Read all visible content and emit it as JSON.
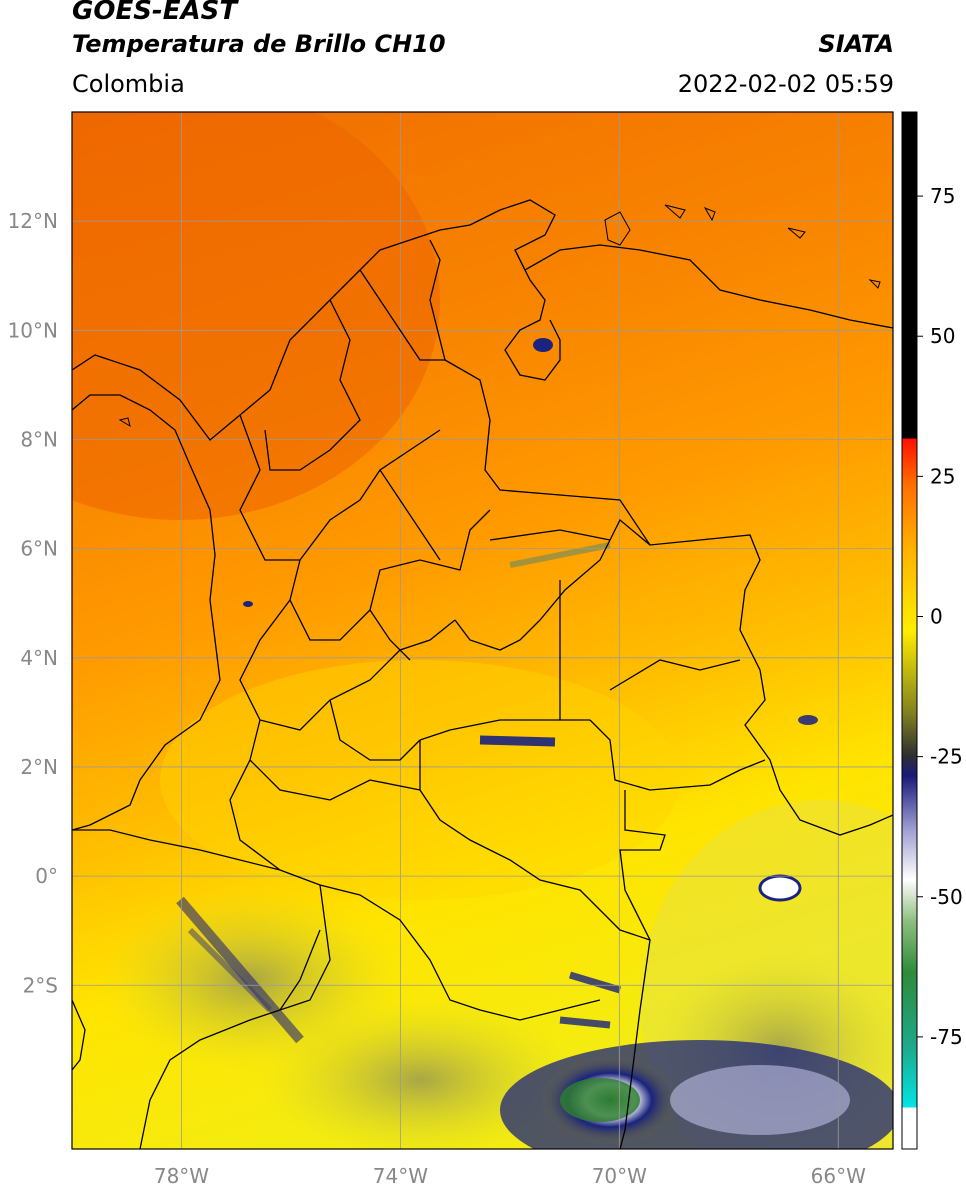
{
  "header": {
    "satellite": "GOES-EAST",
    "product": "Temperatura de Brillo CH10",
    "region": "Colombia",
    "agency": "SIATA",
    "datetime": "2022-02-02 05:59"
  },
  "map": {
    "lon_range": [
      -80,
      -65
    ],
    "lat_range": [
      -5,
      14
    ],
    "x_ticks": [
      {
        "value": -78,
        "label": "78°W"
      },
      {
        "value": -74,
        "label": "74°W"
      },
      {
        "value": -70,
        "label": "70°W"
      },
      {
        "value": -66,
        "label": "66°W"
      }
    ],
    "y_ticks": [
      {
        "value": 12,
        "label": "12°N"
      },
      {
        "value": 10,
        "label": "10°N"
      },
      {
        "value": 8,
        "label": "8°N"
      },
      {
        "value": 6,
        "label": "6°N"
      },
      {
        "value": 4,
        "label": "4°N"
      },
      {
        "value": 2,
        "label": "2°N"
      },
      {
        "value": 0,
        "label": "0°"
      },
      {
        "value": -2,
        "label": "2°S"
      }
    ],
    "gridlines": true,
    "field_colors": {
      "warm": "#f07000",
      "mid": "#ff9900",
      "cool": "#ffcc00",
      "cold": "#ffee00",
      "deep": "#1a237e"
    }
  },
  "colorbar": {
    "range": [
      -95,
      90
    ],
    "ticks": [
      {
        "value": 75,
        "label": "75"
      },
      {
        "value": 50,
        "label": "50"
      },
      {
        "value": 25,
        "label": "25"
      },
      {
        "value": 0,
        "label": "0"
      },
      {
        "value": -25,
        "label": "-25"
      },
      {
        "value": -50,
        "label": "-50"
      },
      {
        "value": -75,
        "label": "-75"
      }
    ]
  }
}
